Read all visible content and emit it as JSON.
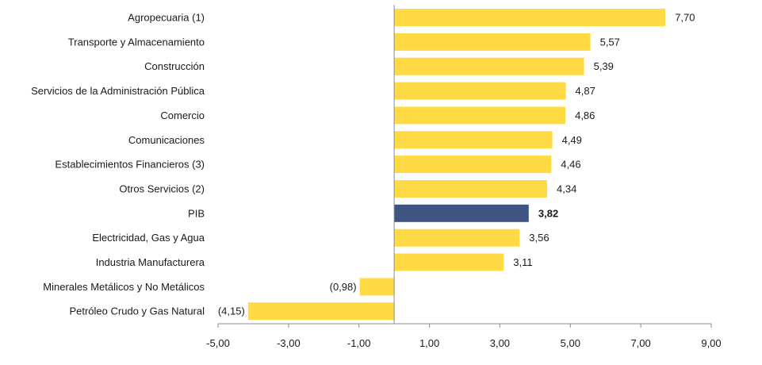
{
  "chart_data": {
    "type": "bar",
    "orientation": "horizontal",
    "categories": [
      "Agropecuaria (1)",
      "Transporte y Almacenamiento",
      "Construcción",
      "Servicios de la Administración Pública",
      "Comercio",
      "Comunicaciones",
      "Establecimientos Financieros (3)",
      "Otros Servicios (2)",
      "PIB",
      "Electricidad, Gas y Agua",
      "Industria Manufacturera",
      "Minerales Metálicos y No Metálicos",
      "Petróleo Crudo y Gas Natural"
    ],
    "values": [
      7.7,
      5.57,
      5.39,
      4.87,
      4.86,
      4.49,
      4.46,
      4.34,
      3.82,
      3.56,
      3.11,
      -0.98,
      -4.15
    ],
    "value_labels": [
      "7,70",
      "5,57",
      "5,39",
      "4,87",
      "4,86",
      "4,49",
      "4,46",
      "4,34",
      "3,82",
      "3,56",
      "3,11",
      "(0,98)",
      "(4,15)"
    ],
    "highlight_category": "PIB",
    "xlim": [
      -5,
      9
    ],
    "xticks": [
      -5,
      -3,
      -1,
      1,
      3,
      5,
      7,
      9
    ],
    "xtick_labels": [
      "-5,00",
      "-3,00",
      "-1,00",
      "1,00",
      "3,00",
      "5,00",
      "7,00",
      "9,00"
    ],
    "colors": {
      "bar": "#FFDA44",
      "highlight": "#3F5581",
      "axis": "#8c8c8c"
    },
    "title": "",
    "xlabel": "",
    "ylabel": "",
    "grid": false,
    "legend": "none"
  }
}
